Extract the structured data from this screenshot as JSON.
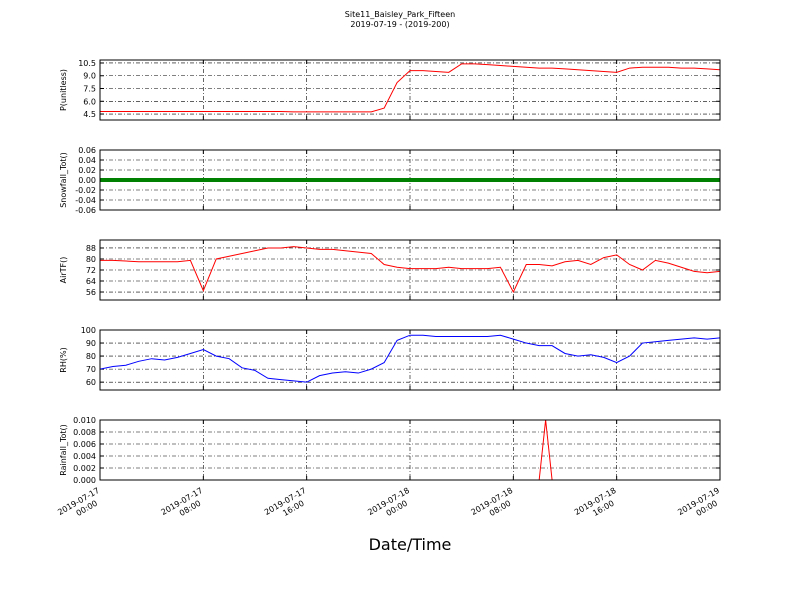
{
  "chart_data": [
    {
      "type": "line",
      "title": "Site11_Baisley_Park_Fifteen",
      "subtitle": "2019-07-19 - (2019-200)",
      "ylabel": "P(unitless)",
      "ylim": [
        3.8,
        10.85
      ],
      "yticks": [
        4.5,
        {
          "value": 6,
          "label": "6.0"
        },
        7.5,
        {
          "value": 9,
          "label": "9.0"
        },
        10.5
      ],
      "series": [
        {
          "color": "#ff0000",
          "linewidth": 1,
          "x": [
            "2019-07-17 00:00",
            "2019-07-17 01:00",
            "2019-07-17 02:00",
            "2019-07-17 03:00",
            "2019-07-17 04:00",
            "2019-07-17 05:00",
            "2019-07-17 06:00",
            "2019-07-17 07:00",
            "2019-07-17 08:00",
            "2019-07-17 09:00",
            "2019-07-17 10:00",
            "2019-07-17 11:00",
            "2019-07-17 12:00",
            "2019-07-17 13:00",
            "2019-07-17 14:00",
            "2019-07-17 15:00",
            "2019-07-17 16:00",
            "2019-07-17 17:00",
            "2019-07-17 18:00",
            "2019-07-17 19:00",
            "2019-07-17 20:00",
            "2019-07-17 21:00",
            "2019-07-17 22:00",
            "2019-07-17 23:00",
            "2019-07-18 00:00",
            "2019-07-18 01:00",
            "2019-07-18 02:00",
            "2019-07-18 03:00",
            "2019-07-18 04:00",
            "2019-07-18 05:00",
            "2019-07-18 06:00",
            "2019-07-18 07:00",
            "2019-07-18 08:00",
            "2019-07-18 09:00",
            "2019-07-18 10:00",
            "2019-07-18 11:00",
            "2019-07-18 12:00",
            "2019-07-18 13:00",
            "2019-07-18 14:00",
            "2019-07-18 15:00",
            "2019-07-18 16:00",
            "2019-07-18 17:00",
            "2019-07-18 18:00",
            "2019-07-18 19:00",
            "2019-07-18 20:00",
            "2019-07-18 21:00",
            "2019-07-18 22:00",
            "2019-07-18 23:00",
            "2019-07-19 00:00"
          ],
          "values": [
            4.8,
            4.8,
            4.8,
            4.8,
            4.8,
            4.8,
            4.8,
            4.8,
            4.8,
            4.8,
            4.8,
            4.8,
            4.8,
            4.8,
            4.8,
            4.75,
            4.75,
            4.75,
            4.75,
            4.75,
            4.75,
            4.75,
            5.2,
            8.2,
            9.6,
            9.6,
            9.5,
            9.4,
            10.4,
            10.4,
            10.3,
            10.2,
            10.1,
            10.0,
            9.9,
            9.9,
            9.8,
            9.7,
            9.6,
            9.5,
            9.4,
            9.9,
            10.0,
            10.0,
            10.0,
            9.9,
            9.9,
            9.8,
            9.7
          ]
        }
      ]
    },
    {
      "type": "line",
      "ylabel": "Snowfall_Tot()",
      "ylim": [
        -0.06,
        0.06
      ],
      "yticks": [
        -0.06,
        -0.04,
        -0.02,
        {
          "value": 0,
          "label": "0.00"
        },
        0.02,
        0.04,
        0.06
      ],
      "series": [
        {
          "color": "#008000",
          "linewidth": 4,
          "x": [
            "2019-07-17 00:00",
            "2019-07-17 01:00",
            "2019-07-17 02:00",
            "2019-07-17 03:00",
            "2019-07-17 04:00",
            "2019-07-17 05:00",
            "2019-07-17 06:00",
            "2019-07-17 07:00",
            "2019-07-17 08:00",
            "2019-07-17 09:00",
            "2019-07-17 10:00",
            "2019-07-17 11:00",
            "2019-07-17 12:00",
            "2019-07-17 13:00",
            "2019-07-17 14:00",
            "2019-07-17 15:00",
            "2019-07-17 16:00",
            "2019-07-17 17:00",
            "2019-07-17 18:00",
            "2019-07-17 19:00",
            "2019-07-17 20:00",
            "2019-07-17 21:00",
            "2019-07-17 22:00",
            "2019-07-17 23:00",
            "2019-07-18 00:00",
            "2019-07-18 01:00",
            "2019-07-18 02:00",
            "2019-07-18 03:00",
            "2019-07-18 04:00",
            "2019-07-18 05:00",
            "2019-07-18 06:00",
            "2019-07-18 07:00",
            "2019-07-18 08:00",
            "2019-07-18 09:00",
            "2019-07-18 10:00",
            "2019-07-18 11:00",
            "2019-07-18 12:00",
            "2019-07-18 13:00",
            "2019-07-18 14:00",
            "2019-07-18 15:00",
            "2019-07-18 16:00",
            "2019-07-18 17:00",
            "2019-07-18 18:00",
            "2019-07-18 19:00",
            "2019-07-18 20:00",
            "2019-07-18 21:00",
            "2019-07-18 22:00",
            "2019-07-18 23:00",
            "2019-07-19 00:00"
          ],
          "values": [
            0,
            0,
            0,
            0,
            0,
            0,
            0,
            0,
            0,
            0,
            0,
            0,
            0,
            0,
            0,
            0,
            0,
            0,
            0,
            0,
            0,
            0,
            0,
            0,
            0,
            0,
            0,
            0,
            0,
            0,
            0,
            0,
            0,
            0,
            0,
            0,
            0,
            0,
            0,
            0,
            0,
            0,
            0,
            0,
            0,
            0,
            0,
            0,
            0
          ]
        }
      ]
    },
    {
      "type": "line",
      "ylabel": "AirTF()",
      "ylim": [
        50.2,
        93.8
      ],
      "yticks": [
        56,
        64,
        72,
        80,
        88
      ],
      "series": [
        {
          "color": "#ff0000",
          "linewidth": 1,
          "x": [
            "2019-07-17 00:00",
            "2019-07-17 01:00",
            "2019-07-17 02:00",
            "2019-07-17 03:00",
            "2019-07-17 04:00",
            "2019-07-17 05:00",
            "2019-07-17 06:00",
            "2019-07-17 07:00",
            "2019-07-17 08:00",
            "2019-07-17 09:00",
            "2019-07-17 10:00",
            "2019-07-17 11:00",
            "2019-07-17 12:00",
            "2019-07-17 13:00",
            "2019-07-17 14:00",
            "2019-07-17 15:00",
            "2019-07-17 16:00",
            "2019-07-17 17:00",
            "2019-07-17 18:00",
            "2019-07-17 19:00",
            "2019-07-17 20:00",
            "2019-07-17 21:00",
            "2019-07-17 22:00",
            "2019-07-17 23:00",
            "2019-07-18 00:00",
            "2019-07-18 01:00",
            "2019-07-18 02:00",
            "2019-07-18 03:00",
            "2019-07-18 04:00",
            "2019-07-18 05:00",
            "2019-07-18 06:00",
            "2019-07-18 07:00",
            "2019-07-18 08:00",
            "2019-07-18 09:00",
            "2019-07-18 10:00",
            "2019-07-18 11:00",
            "2019-07-18 12:00",
            "2019-07-18 13:00",
            "2019-07-18 14:00",
            "2019-07-18 15:00",
            "2019-07-18 16:00",
            "2019-07-18 17:00",
            "2019-07-18 18:00",
            "2019-07-18 19:00",
            "2019-07-18 20:00",
            "2019-07-18 21:00",
            "2019-07-18 22:00",
            "2019-07-18 23:00",
            "2019-07-19 00:00"
          ],
          "values": [
            79,
            79,
            78.5,
            78,
            78,
            78,
            78,
            79,
            57,
            80,
            82,
            84,
            86,
            88,
            88,
            89,
            88,
            87,
            87,
            86,
            85,
            84,
            76,
            74,
            73,
            73,
            73,
            74,
            73,
            73,
            73,
            74,
            56,
            76,
            76,
            75,
            78,
            79,
            76,
            81,
            83,
            76,
            72,
            79,
            77,
            74,
            71,
            70,
            71
          ]
        }
      ]
    },
    {
      "type": "line",
      "ylabel": "RH(%)",
      "ylim": [
        54,
        100
      ],
      "yticks": [
        60,
        70,
        80,
        90,
        100
      ],
      "series": [
        {
          "color": "#0000ff",
          "linewidth": 1,
          "x": [
            "2019-07-17 00:00",
            "2019-07-17 01:00",
            "2019-07-17 02:00",
            "2019-07-17 03:00",
            "2019-07-17 04:00",
            "2019-07-17 05:00",
            "2019-07-17 06:00",
            "2019-07-17 07:00",
            "2019-07-17 08:00",
            "2019-07-17 09:00",
            "2019-07-17 10:00",
            "2019-07-17 11:00",
            "2019-07-17 12:00",
            "2019-07-17 13:00",
            "2019-07-17 14:00",
            "2019-07-17 15:00",
            "2019-07-17 16:00",
            "2019-07-17 17:00",
            "2019-07-17 18:00",
            "2019-07-17 19:00",
            "2019-07-17 20:00",
            "2019-07-17 21:00",
            "2019-07-17 22:00",
            "2019-07-17 23:00",
            "2019-07-18 00:00",
            "2019-07-18 01:00",
            "2019-07-18 02:00",
            "2019-07-18 03:00",
            "2019-07-18 04:00",
            "2019-07-18 05:00",
            "2019-07-18 06:00",
            "2019-07-18 07:00",
            "2019-07-18 08:00",
            "2019-07-18 09:00",
            "2019-07-18 10:00",
            "2019-07-18 11:00",
            "2019-07-18 12:00",
            "2019-07-18 13:00",
            "2019-07-18 14:00",
            "2019-07-18 15:00",
            "2019-07-18 16:00",
            "2019-07-18 17:00",
            "2019-07-18 18:00",
            "2019-07-18 19:00",
            "2019-07-18 20:00",
            "2019-07-18 21:00",
            "2019-07-18 22:00",
            "2019-07-18 23:00",
            "2019-07-19 00:00"
          ],
          "values": [
            70,
            72,
            73,
            76,
            78,
            77,
            79,
            82,
            85,
            80,
            78,
            71,
            69,
            63,
            62,
            61,
            60,
            65,
            67,
            68,
            67,
            70,
            75,
            92,
            96,
            96,
            95,
            95,
            95,
            95,
            95,
            96,
            93,
            90,
            88,
            88,
            82,
            80,
            81,
            79,
            75,
            80,
            90,
            91,
            92,
            93,
            94,
            93,
            94
          ]
        }
      ]
    },
    {
      "type": "line",
      "ylabel": "Rainfall_Tot()",
      "xlabel": "Date/Time",
      "xlim": [
        "2019-07-17 00:00",
        "2019-07-19 00:00"
      ],
      "xticks": [
        "2019-07-17 00:00",
        "2019-07-17 08:00",
        "2019-07-17 16:00",
        "2019-07-18 00:00",
        "2019-07-18 08:00",
        "2019-07-18 16:00",
        "2019-07-19 00:00"
      ],
      "ylim": [
        0,
        0.01
      ],
      "yticks": [
        {
          "value": 0,
          "label": "0.000"
        },
        {
          "value": 0.002,
          "label": "0.002"
        },
        {
          "value": 0.004,
          "label": "0.004"
        },
        {
          "value": 0.006,
          "label": "0.006"
        },
        {
          "value": 0.008,
          "label": "0.008"
        },
        {
          "value": 0.01,
          "label": "0.010"
        }
      ],
      "series": [
        {
          "color": "#ff0000",
          "linewidth": 1,
          "x": [
            "2019-07-17 00:00",
            "2019-07-18 10:00",
            "2019-07-18 10:30",
            "2019-07-18 11:00",
            "2019-07-19 00:00"
          ],
          "values": [
            0,
            0,
            0.01,
            0,
            0
          ]
        }
      ]
    }
  ]
}
